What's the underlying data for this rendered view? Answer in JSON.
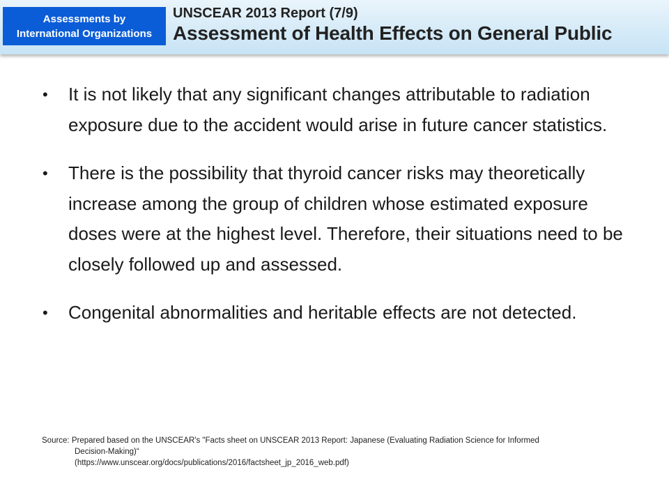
{
  "header": {
    "badge_text": "Assessments by\nInternational Organizations",
    "subtitle": "UNSCEAR 2013  Report (7/9)",
    "title": "Assessment of Health Effects on General Public",
    "background_color": "#d6ebf8",
    "badge_color": "#0b5dd7"
  },
  "bullets": [
    {
      "marker": "•",
      "text": "It is not likely that any significant changes attributable to radiation exposure due to the accident would arise in future cancer statistics."
    },
    {
      "marker": "•",
      "text": "There is the possibility that thyroid cancer risks may theoretically increase among the group of children whose estimated exposure doses were at the highest level. Therefore, their situations need to be closely followed up and assessed."
    },
    {
      "marker": "•",
      "text": "Congenital abnormalities and heritable effects are not detected."
    }
  ],
  "source": {
    "line1": "Source: Prepared based on the UNSCEAR's \"Facts sheet on UNSCEAR 2013  Report: Japanese (Evaluating Radiation Science for Informed",
    "line2": "Decision-Making)“",
    "line3": "(https://www.unscear.org/docs/publications/2016/factsheet_jp_2016_web.pdf)"
  }
}
